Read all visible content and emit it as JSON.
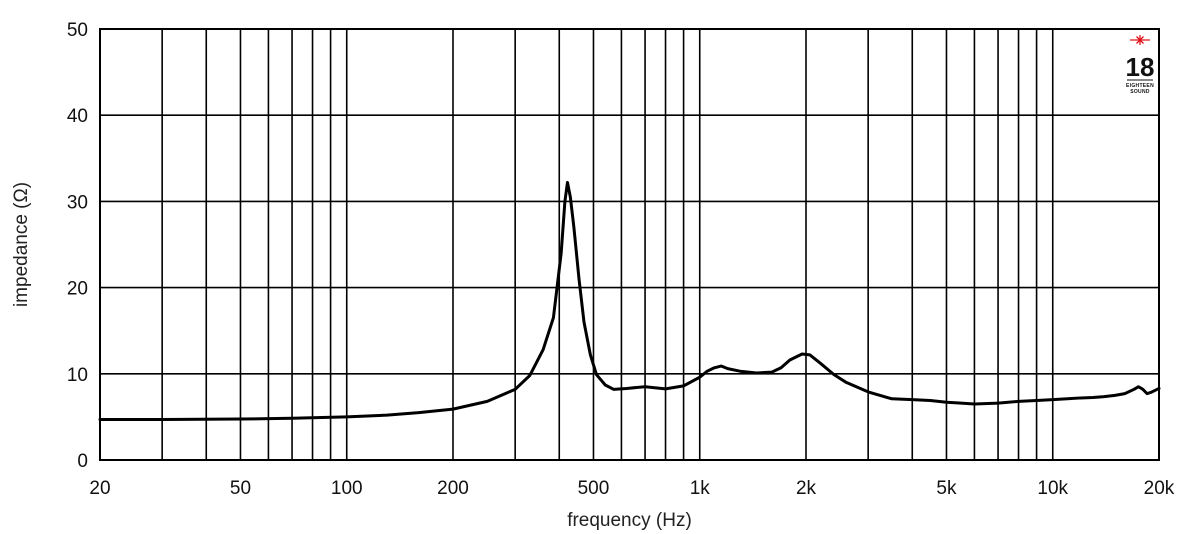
{
  "chart_data": {
    "type": "line",
    "xlabel": "frequency (Hz)",
    "ylabel": "impedance (Ω)",
    "x_scale": "log",
    "xlim": [
      20,
      20000
    ],
    "ylim": [
      0,
      50
    ],
    "grid": true,
    "x_ticks": [
      {
        "value": 20,
        "label": "20"
      },
      {
        "value": 50,
        "label": "50"
      },
      {
        "value": 100,
        "label": "100"
      },
      {
        "value": 200,
        "label": "200"
      },
      {
        "value": 500,
        "label": "500"
      },
      {
        "value": 1000,
        "label": "1k"
      },
      {
        "value": 2000,
        "label": "2k"
      },
      {
        "value": 5000,
        "label": "5k"
      },
      {
        "value": 10000,
        "label": "10k"
      },
      {
        "value": 20000,
        "label": "20k"
      }
    ],
    "y_ticks": [
      {
        "value": 0,
        "label": "0"
      },
      {
        "value": 10,
        "label": "10"
      },
      {
        "value": 20,
        "label": "20"
      },
      {
        "value": 30,
        "label": "30"
      },
      {
        "value": 40,
        "label": "40"
      },
      {
        "value": 50,
        "label": "50"
      }
    ],
    "x_gridlines": [
      20,
      30,
      40,
      50,
      60,
      70,
      80,
      90,
      100,
      200,
      300,
      400,
      500,
      600,
      700,
      800,
      900,
      1000,
      2000,
      3000,
      4000,
      5000,
      6000,
      7000,
      8000,
      9000,
      10000,
      20000
    ],
    "y_gridlines": [
      0,
      10,
      20,
      30,
      40,
      50
    ],
    "series": [
      {
        "color": "#000000",
        "points": [
          [
            20,
            4.7
          ],
          [
            30,
            4.7
          ],
          [
            50,
            4.75
          ],
          [
            70,
            4.85
          ],
          [
            100,
            5.0
          ],
          [
            130,
            5.2
          ],
          [
            160,
            5.5
          ],
          [
            200,
            5.9
          ],
          [
            250,
            6.8
          ],
          [
            300,
            8.2
          ],
          [
            330,
            9.8
          ],
          [
            360,
            12.8
          ],
          [
            385,
            16.5
          ],
          [
            405,
            24.0
          ],
          [
            415,
            30.0
          ],
          [
            422,
            32.2
          ],
          [
            430,
            30.5
          ],
          [
            440,
            27.0
          ],
          [
            455,
            21.0
          ],
          [
            470,
            16.0
          ],
          [
            490,
            12.2
          ],
          [
            510,
            9.9
          ],
          [
            540,
            8.7
          ],
          [
            570,
            8.2
          ],
          [
            620,
            8.3
          ],
          [
            700,
            8.5
          ],
          [
            800,
            8.25
          ],
          [
            900,
            8.6
          ],
          [
            1000,
            9.6
          ],
          [
            1050,
            10.3
          ],
          [
            1100,
            10.7
          ],
          [
            1150,
            10.9
          ],
          [
            1200,
            10.6
          ],
          [
            1300,
            10.3
          ],
          [
            1450,
            10.1
          ],
          [
            1600,
            10.2
          ],
          [
            1700,
            10.7
          ],
          [
            1800,
            11.6
          ],
          [
            1950,
            12.3
          ],
          [
            2050,
            12.2
          ],
          [
            2200,
            11.2
          ],
          [
            2400,
            9.9
          ],
          [
            2600,
            9.0
          ],
          [
            3000,
            7.9
          ],
          [
            3500,
            7.1
          ],
          [
            4000,
            7.0
          ],
          [
            4500,
            6.9
          ],
          [
            5000,
            6.7
          ],
          [
            5500,
            6.6
          ],
          [
            6000,
            6.5
          ],
          [
            7000,
            6.6
          ],
          [
            8000,
            6.8
          ],
          [
            9000,
            6.9
          ],
          [
            10000,
            7.0
          ],
          [
            11000,
            7.1
          ],
          [
            12000,
            7.2
          ],
          [
            13000,
            7.25
          ],
          [
            14000,
            7.35
          ],
          [
            15000,
            7.5
          ],
          [
            16000,
            7.7
          ],
          [
            17000,
            8.2
          ],
          [
            17500,
            8.5
          ],
          [
            18000,
            8.2
          ],
          [
            18500,
            7.7
          ],
          [
            19000,
            7.85
          ],
          [
            20000,
            8.3
          ]
        ]
      }
    ]
  },
  "logo": {
    "number": "18",
    "tagline_1": "EIGHTEEN",
    "tagline_2": "SOUND",
    "accent_color": "#e3131b"
  }
}
